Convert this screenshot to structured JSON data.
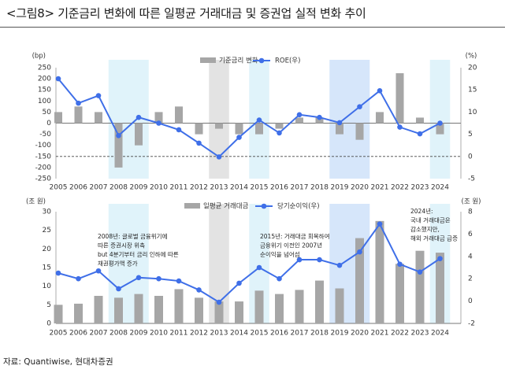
{
  "title": "<그림8> 기준금리 변화에 따른 일평균 거래대금 및 증권업 실적 변화 추이",
  "source": "자료: Quantiwise, 현대차증권",
  "colors": {
    "bar": "#a6a6a6",
    "line": "#3f6fe8",
    "highlight_blue": "#d6e6fa",
    "highlight_gray": "#e3e3e3",
    "highlight_lightblue": "#e0f3fa",
    "refline": "#444444"
  },
  "chart_data": [
    {
      "type": "bar+line",
      "left_axis_unit": "(bp)",
      "right_axis_unit": "(%)",
      "x": [
        "2005",
        "2006",
        "2007",
        "2008",
        "2009",
        "2010",
        "2011",
        "2012",
        "2013",
        "2014",
        "2015",
        "2016",
        "2017",
        "2018",
        "2019",
        "2020",
        "2021",
        "2022",
        "2023",
        "2024"
      ],
      "left_ylim": [
        -250,
        250
      ],
      "left_ticks": [
        250,
        200,
        150,
        100,
        50,
        0,
        -50,
        -100,
        -150,
        -200,
        -250
      ],
      "right_ylim": [
        -5,
        20
      ],
      "right_ticks": [
        20,
        15,
        10,
        5,
        0,
        -5
      ],
      "reference_line": {
        "axis": "left",
        "value": -150,
        "style": "dashed"
      },
      "series": [
        {
          "name": "기준금리 변화",
          "type": "bar",
          "axis": "left",
          "values": [
            50,
            75,
            50,
            -200,
            -100,
            50,
            75,
            -50,
            -25,
            -50,
            -50,
            -25,
            25,
            25,
            -50,
            -75,
            50,
            225,
            25,
            -50
          ]
        },
        {
          "name": "ROE(우)",
          "type": "line",
          "axis": "right",
          "values": [
            17.5,
            12.0,
            13.7,
            4.7,
            8.8,
            7.5,
            6.0,
            3.0,
            -0.1,
            4.3,
            8.2,
            5.3,
            9.4,
            8.8,
            7.6,
            11.2,
            14.8,
            6.6,
            5.1,
            7.5
          ]
        }
      ],
      "highlight_bands": [
        {
          "from": "2008",
          "to": "2009",
          "color": "highlight_lightblue"
        },
        {
          "from": "2013",
          "to": "2013",
          "color": "highlight_gray"
        },
        {
          "from": "2015",
          "to": "2015",
          "color": "highlight_lightblue"
        },
        {
          "from": "2019",
          "to": "2020",
          "color": "highlight_blue"
        },
        {
          "from": "2024",
          "to": "2024",
          "color": "highlight_lightblue"
        }
      ]
    },
    {
      "type": "bar+line",
      "left_axis_unit": "(조 원)",
      "right_axis_unit": "(조 원)",
      "x": [
        "2005",
        "2006",
        "2007",
        "2008",
        "2009",
        "2010",
        "2011",
        "2012",
        "2013",
        "2014",
        "2015",
        "2016",
        "2017",
        "2018",
        "2019",
        "2020",
        "2021",
        "2022",
        "2023",
        "2024"
      ],
      "left_ylim": [
        0,
        30
      ],
      "left_ticks": [
        30,
        25,
        20,
        15,
        10,
        5,
        0
      ],
      "right_ylim": [
        -2,
        8
      ],
      "right_ticks": [
        8,
        6,
        4,
        2,
        0,
        -2
      ],
      "series": [
        {
          "name": "일평균 거래대금",
          "type": "bar",
          "axis": "left",
          "values": [
            5.0,
            5.3,
            7.4,
            6.9,
            7.9,
            7.4,
            9.2,
            6.9,
            5.9,
            5.9,
            8.8,
            7.9,
            9.0,
            11.5,
            9.4,
            22.9,
            27.5,
            16.0,
            19.5,
            19.0
          ]
        },
        {
          "name": "당기순이익(우)",
          "type": "line",
          "axis": "right",
          "values": [
            2.5,
            2.0,
            2.7,
            1.1,
            2.1,
            2.0,
            1.8,
            1.0,
            -0.1,
            1.6,
            3.0,
            2.0,
            3.7,
            3.7,
            3.2,
            4.4,
            6.9,
            3.3,
            2.6,
            3.8
          ]
        }
      ],
      "highlight_bands": [
        {
          "from": "2008",
          "to": "2009",
          "color": "highlight_lightblue"
        },
        {
          "from": "2013",
          "to": "2013",
          "color": "highlight_gray"
        },
        {
          "from": "2015",
          "to": "2015",
          "color": "highlight_lightblue"
        },
        {
          "from": "2019",
          "to": "2020",
          "color": "highlight_blue"
        },
        {
          "from": "2024",
          "to": "2024",
          "color": "highlight_lightblue"
        }
      ],
      "annotations": [
        {
          "year": "2008",
          "lines": [
            "2008년: 글로벌 금융위기에",
            "따른 증권시장 위축",
            "but 4분기부터 금리 인하에 따른",
            "채권평가액 증가"
          ]
        },
        {
          "year": "2015",
          "lines": [
            "2015년: 거래대금 회복하여",
            "금융위기 이전인 2007년",
            "순이익을 넘어섬"
          ]
        },
        {
          "year": "2024",
          "lines": [
            "2024년:",
            "국내 거래대금은",
            "감소했지만,",
            "해외 거래대금 급증"
          ]
        }
      ]
    }
  ]
}
